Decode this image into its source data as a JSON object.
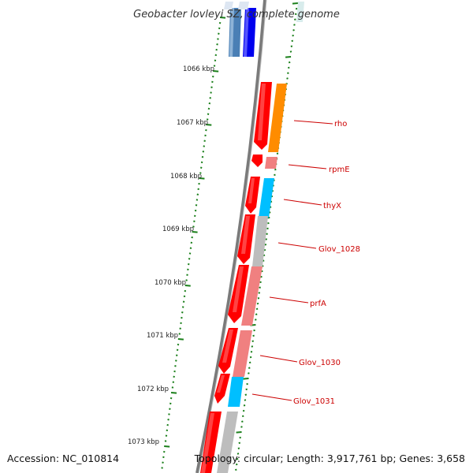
{
  "title": "Geobacter lovleyi SZ, complete genome",
  "footer": {
    "accession": "Accession: NC_010814",
    "summary": "Topology: circular; Length: 3,917,761 bp; Genes: 3,658"
  },
  "colors": {
    "backbone": "#777777",
    "tick": "#1a7f1a",
    "label": "#cc0000",
    "forward_cds": "#ff0000"
  },
  "kbp_ticks": [
    {
      "label": "1066 kbp"
    },
    {
      "label": "1067 kbp"
    },
    {
      "label": "1068 kbp"
    },
    {
      "label": "1069 kbp"
    },
    {
      "label": "1070 kbp"
    },
    {
      "label": "1071 kbp"
    },
    {
      "label": "1072 kbp"
    },
    {
      "label": "1073 kbp"
    }
  ],
  "genes": [
    {
      "name": "rho",
      "color": "#ff8c00"
    },
    {
      "name": "rpmE",
      "color": "#f08080"
    },
    {
      "name": "thyX",
      "color": "#00bfff"
    },
    {
      "name": "Glov_1028",
      "color": "#bdbdbd"
    },
    {
      "name": "prfA",
      "color": "#f08080"
    },
    {
      "name": "Glov_1030",
      "color": "#f08080"
    },
    {
      "name": "Glov_1031",
      "color": "#00bfff"
    }
  ]
}
